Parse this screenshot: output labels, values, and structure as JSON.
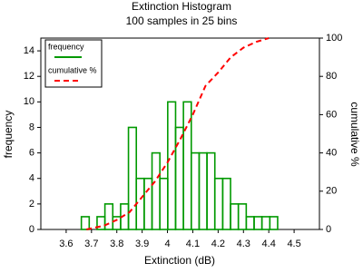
{
  "chart_data": {
    "type": "histogram",
    "title": "Extinction Histogram",
    "subtitle": "100 samples in 25 bins",
    "x_label": "Extinction (dB)",
    "y_label": "frequency",
    "y2_label": "cumulative %",
    "bins": [
      3.66,
      3.691,
      3.722,
      3.753,
      3.784,
      3.815,
      3.846,
      3.877,
      3.908,
      3.939,
      3.97,
      4.001,
      4.032,
      4.063,
      4.094,
      4.125,
      4.156,
      4.187,
      4.218,
      4.249,
      4.28,
      4.311,
      4.342,
      4.373,
      4.404,
      4.435
    ],
    "series": [
      {
        "name": "frequency",
        "color": "#009900",
        "values": [
          1,
          0,
          1,
          2,
          1,
          2,
          8,
          4,
          4,
          6,
          4,
          10,
          8,
          10,
          6,
          6,
          6,
          4,
          4,
          2,
          2,
          1,
          1,
          1,
          1
        ]
      },
      {
        "name": "cumulative %",
        "color": "#ff0000",
        "type": "line",
        "axis": "y2",
        "x": [
          3.68,
          3.75,
          3.8,
          3.85,
          3.9,
          3.95,
          4.0,
          4.05,
          4.1,
          4.15,
          4.2,
          4.25,
          4.3,
          4.35,
          4.4
        ],
        "values": [
          0,
          2,
          5,
          9,
          17,
          25,
          35,
          47,
          60,
          75,
          82,
          90,
          95,
          98,
          100
        ]
      }
    ],
    "xlim": [
      3.5,
      4.6
    ],
    "xticks": [
      3.6,
      3.7,
      3.8,
      3.9,
      4.0,
      4.1,
      4.2,
      4.3,
      4.4,
      4.5
    ],
    "ylim": [
      0,
      15
    ],
    "yticks": [
      0,
      2,
      4,
      6,
      8,
      10,
      12,
      14
    ],
    "y2lim": [
      0,
      100
    ],
    "y2ticks": [
      0,
      20,
      40,
      60,
      80,
      100
    ],
    "legend": "top-left"
  }
}
